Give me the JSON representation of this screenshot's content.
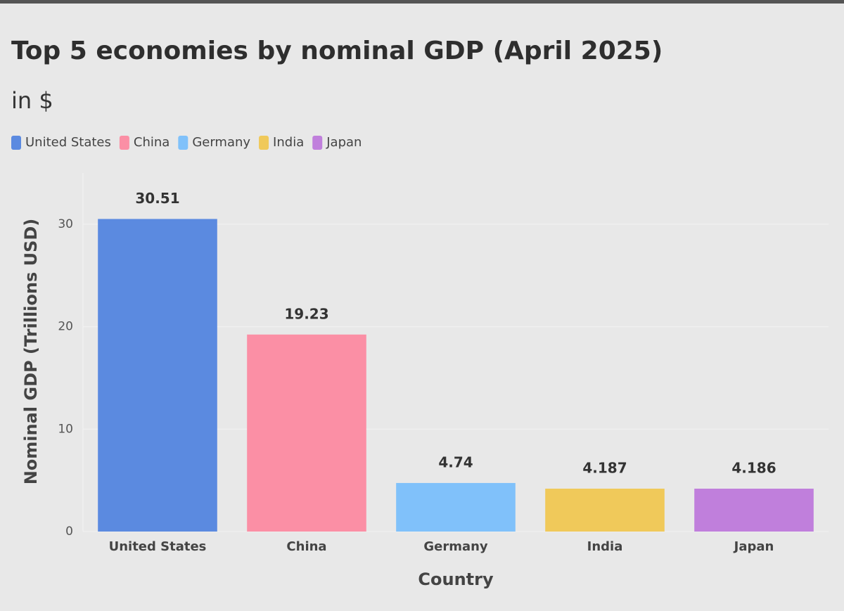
{
  "chart_data": {
    "type": "bar",
    "title": "Top 5 economies by nominal GDP (April 2025)",
    "subtitle": "in $",
    "x_label": "Country",
    "y_label": "Nominal GDP (Trillions USD)",
    "categories": [
      "United States",
      "China",
      "Germany",
      "India",
      "Japan"
    ],
    "values": [
      30.51,
      19.23,
      4.74,
      4.187,
      4.186
    ],
    "colors": [
      "#5b8ae0",
      "#fb8fa5",
      "#80c1fa",
      "#f0c95a",
      "#c07fdc"
    ],
    "ylim": [
      0,
      35
    ],
    "yticks": [
      0,
      10,
      20,
      30
    ],
    "grid": true,
    "legend": "top-left"
  }
}
